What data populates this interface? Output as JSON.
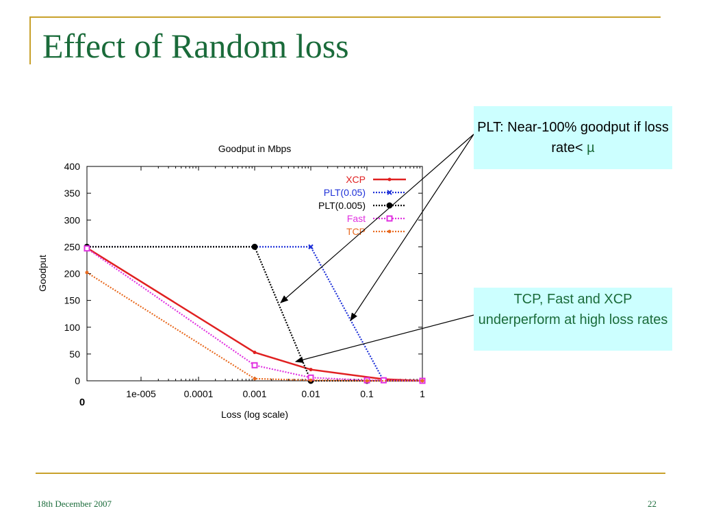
{
  "slide": {
    "title": "Effect of Random loss",
    "footer_date": "18th December 2007",
    "page_number": "22"
  },
  "callouts": [
    {
      "text": "PLT: Near-100% goodput if loss rate<",
      "symbol": "µ"
    },
    {
      "text": "TCP, Fast and XCP underperform at high loss rates"
    }
  ],
  "colors": {
    "title": "#1a6b3a",
    "frame": "#c8a02a",
    "callout_bg": "#ccffff"
  },
  "chart_data": {
    "type": "line",
    "title": "Goodput in Mbps",
    "xlabel": "Loss (log scale)",
    "ylabel": "Goodput",
    "x_scale": "log",
    "x_ticks": [
      {
        "x": 0,
        "label": "0"
      },
      {
        "x": 1e-05,
        "label": "1e-005"
      },
      {
        "x": 0.0001,
        "label": "0.0001"
      },
      {
        "x": 0.001,
        "label": "0.001"
      },
      {
        "x": 0.01,
        "label": "0.01"
      },
      {
        "x": 0.1,
        "label": "0.1"
      },
      {
        "x": 1,
        "label": "1"
      }
    ],
    "y_ticks": [
      0,
      50,
      100,
      150,
      200,
      250,
      300,
      350,
      400
    ],
    "ylim": [
      0,
      400
    ],
    "legend_position": "top-right",
    "series": [
      {
        "name": "XCP",
        "color": "#e02020",
        "dash": "solid",
        "marker": "dot",
        "points": [
          [
            0,
            248
          ],
          [
            0.001,
            53
          ],
          [
            0.01,
            21
          ],
          [
            0.2,
            3
          ],
          [
            1,
            0
          ]
        ]
      },
      {
        "name": "PLT(0.05)",
        "color": "#1c2fd8",
        "dash": "dotted",
        "marker": "x",
        "points": [
          [
            0,
            250
          ],
          [
            0.001,
            250
          ],
          [
            0.01,
            250
          ],
          [
            0.2,
            0
          ],
          [
            1,
            0
          ]
        ]
      },
      {
        "name": "PLT(0.005)",
        "color": "#000000",
        "dash": "dotted",
        "marker": "circle",
        "points": [
          [
            0,
            250
          ],
          [
            0.001,
            250
          ],
          [
            0.01,
            0
          ],
          [
            0.1,
            0
          ],
          [
            1,
            0
          ]
        ]
      },
      {
        "name": "Fast",
        "color": "#e030e0",
        "dash": "dotted",
        "marker": "square",
        "points": [
          [
            0,
            247
          ],
          [
            0.001,
            29
          ],
          [
            0.01,
            6
          ],
          [
            0.1,
            1
          ],
          [
            0.2,
            1
          ],
          [
            1,
            0
          ]
        ]
      },
      {
        "name": "TCP",
        "color": "#e86a20",
        "dash": "dotted",
        "marker": "dot",
        "points": [
          [
            0,
            202
          ],
          [
            0.001,
            4
          ],
          [
            0.01,
            1
          ],
          [
            0.1,
            0
          ],
          [
            1,
            0
          ]
        ]
      }
    ]
  }
}
